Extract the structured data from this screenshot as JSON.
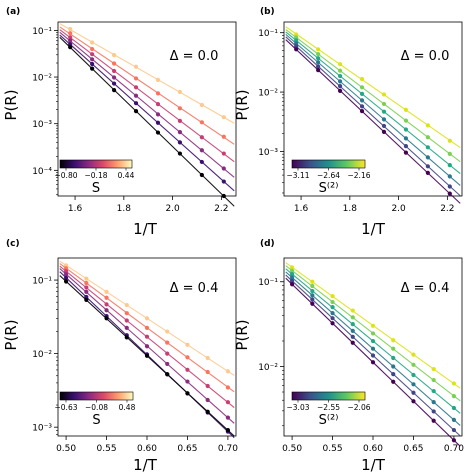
{
  "chart_data": [
    {
      "type": "scatter",
      "panel_label": "(a)",
      "xlabel": "1/T",
      "ylabel": "P(R)",
      "annotation": "Δ = 0.0",
      "scale_y": "log",
      "xlim": [
        1.53,
        2.26
      ],
      "ylim_log10": [
        -4.55,
        -0.82
      ],
      "x_ticks": [
        1.6,
        1.8,
        2.0,
        2.2
      ],
      "x_tick_labels": [
        "1.6",
        "1.8",
        "2.0",
        "2.2"
      ],
      "y_ticks_log10": [
        -1,
        -2,
        -3,
        -4
      ],
      "y_tick_labels": [
        "10⁻¹",
        "10⁻²",
        "10⁻³",
        "10⁻⁴"
      ],
      "x": [
        1.58,
        1.67,
        1.76,
        1.85,
        1.94,
        2.03,
        2.12,
        2.21
      ],
      "colorbar": {
        "label": "S",
        "colormap": "magma",
        "ticks": [
          "−0.80",
          "−0.18",
          "0.44"
        ]
      },
      "series": [
        {
          "color": "#fec98d",
          "log10_values": [
            -0.97,
            -1.26,
            -1.53,
            -1.78,
            -2.06,
            -2.32,
            -2.6,
            -2.86
          ]
        },
        {
          "color": "#f9735d",
          "log10_values": [
            -1.06,
            -1.4,
            -1.71,
            -2.03,
            -2.35,
            -2.67,
            -2.97,
            -3.28
          ]
        },
        {
          "color": "#c83e73",
          "log10_values": [
            -1.15,
            -1.51,
            -1.87,
            -2.22,
            -2.58,
            -2.94,
            -3.29,
            -3.64
          ]
        },
        {
          "color": "#8a2c7e",
          "log10_values": [
            -1.22,
            -1.62,
            -2.01,
            -2.4,
            -2.8,
            -3.18,
            -3.57,
            -3.96
          ]
        },
        {
          "color": "#3b0f70",
          "log10_values": [
            -1.3,
            -1.72,
            -2.14,
            -2.56,
            -2.98,
            -3.4,
            -3.82,
            -4.24
          ]
        },
        {
          "color": "#000004",
          "log10_values": [
            -1.36,
            -1.82,
            -2.28,
            -2.73,
            -3.19,
            -3.64,
            -4.1,
            -4.55
          ]
        }
      ]
    },
    {
      "type": "scatter",
      "panel_label": "(b)",
      "xlabel": "1/T",
      "ylabel": "P(R)",
      "annotation": "Δ = 0.0",
      "scale_y": "log",
      "xlim": [
        1.53,
        2.26
      ],
      "ylim_log10": [
        -3.75,
        -0.82
      ],
      "x_ticks": [
        1.6,
        1.8,
        2.0,
        2.2
      ],
      "x_tick_labels": [
        "1.6",
        "1.8",
        "2.0",
        "2.2"
      ],
      "y_ticks_log10": [
        -1,
        -2,
        -3
      ],
      "y_tick_labels": [
        "10⁻¹",
        "10⁻²",
        "10⁻³"
      ],
      "x": [
        1.58,
        1.67,
        1.76,
        1.85,
        1.94,
        2.03,
        2.12,
        2.21
      ],
      "colorbar": {
        "label": "S⁽²⁾",
        "colormap": "viridis",
        "ticks": [
          "−3.11",
          "−2.64",
          "−2.16"
        ]
      },
      "series": [
        {
          "color": "#dde318",
          "log10_values": [
            -1.03,
            -1.28,
            -1.53,
            -1.78,
            -2.04,
            -2.3,
            -2.56,
            -2.82
          ]
        },
        {
          "color": "#7ad151",
          "log10_values": [
            -1.08,
            -1.36,
            -1.64,
            -1.92,
            -2.2,
            -2.48,
            -2.76,
            -3.04
          ]
        },
        {
          "color": "#22a884",
          "log10_values": [
            -1.13,
            -1.43,
            -1.73,
            -2.03,
            -2.33,
            -2.63,
            -2.93,
            -3.23
          ]
        },
        {
          "color": "#2a788e",
          "log10_values": [
            -1.18,
            -1.5,
            -1.82,
            -2.14,
            -2.46,
            -2.78,
            -3.1,
            -3.42
          ]
        },
        {
          "color": "#414487",
          "log10_values": [
            -1.23,
            -1.57,
            -1.9,
            -2.24,
            -2.57,
            -2.91,
            -3.25,
            -3.59
          ]
        },
        {
          "color": "#440154",
          "log10_values": [
            -1.28,
            -1.63,
            -1.98,
            -2.32,
            -2.67,
            -3.02,
            -3.36,
            -3.71
          ]
        }
      ]
    },
    {
      "type": "scatter",
      "panel_label": "(c)",
      "xlabel": "1/T",
      "ylabel": "P(R)",
      "annotation": "Δ = 0.4",
      "scale_y": "log",
      "xlim": [
        0.49,
        0.71
      ],
      "ylim_log10": [
        -3.12,
        -0.7
      ],
      "x_ticks": [
        0.5,
        0.55,
        0.6,
        0.65,
        0.7
      ],
      "x_tick_labels": [
        "0.50",
        "0.55",
        "0.60",
        "0.65",
        "0.70"
      ],
      "y_ticks_log10": [
        -1,
        -2,
        -3
      ],
      "y_tick_labels": [
        "10⁻¹",
        "10⁻²",
        "10⁻³"
      ],
      "x": [
        0.5,
        0.525,
        0.55,
        0.575,
        0.6,
        0.625,
        0.65,
        0.675,
        0.7
      ],
      "colorbar": {
        "label": "S",
        "colormap": "magma",
        "ticks": [
          "−0.63",
          "−0.08",
          "0.48"
        ]
      },
      "series": [
        {
          "color": "#fec98d",
          "log10_values": [
            -0.8,
            -0.98,
            -1.16,
            -1.34,
            -1.52,
            -1.7,
            -1.88,
            -2.06,
            -2.24
          ]
        },
        {
          "color": "#f9735d",
          "log10_values": [
            -0.84,
            -1.04,
            -1.24,
            -1.45,
            -1.65,
            -1.85,
            -2.05,
            -2.25,
            -2.46
          ]
        },
        {
          "color": "#c83e73",
          "log10_values": [
            -0.88,
            -1.1,
            -1.33,
            -1.55,
            -1.77,
            -2.0,
            -2.22,
            -2.44,
            -2.66
          ]
        },
        {
          "color": "#8a2c7e",
          "log10_values": [
            -0.92,
            -1.16,
            -1.41,
            -1.65,
            -1.9,
            -2.14,
            -2.38,
            -2.63,
            -2.87
          ]
        },
        {
          "color": "#3b0f70",
          "log10_values": [
            -0.97,
            -1.23,
            -1.49,
            -1.75,
            -2.01,
            -2.28,
            -2.54,
            -2.8,
            -3.06
          ]
        },
        {
          "color": "#000004",
          "log10_values": [
            -1.02,
            -1.27,
            -1.52,
            -1.78,
            -2.03,
            -2.28,
            -2.54,
            -2.79,
            -3.04
          ]
        }
      ]
    },
    {
      "type": "scatter",
      "panel_label": "(d)",
      "xlabel": "1/T",
      "ylabel": "P(R)",
      "annotation": "Δ = 0.4",
      "scale_y": "log",
      "xlim": [
        0.49,
        0.71
      ],
      "ylim_log10": [
        -2.82,
        -0.72
      ],
      "x_ticks": [
        0.5,
        0.55,
        0.6,
        0.65,
        0.7
      ],
      "x_tick_labels": [
        "0.50",
        "0.55",
        "0.60",
        "0.65",
        "0.70"
      ],
      "y_ticks_log10": [
        -1,
        -2
      ],
      "y_tick_labels": [
        "10⁻¹",
        "10⁻²"
      ],
      "x": [
        0.5,
        0.525,
        0.55,
        0.575,
        0.6,
        0.625,
        0.65,
        0.675,
        0.7
      ],
      "colorbar": {
        "label": "S⁽²⁾",
        "colormap": "viridis",
        "ticks": [
          "−3.03",
          "−2.55",
          "−2.06"
        ]
      },
      "series": [
        {
          "color": "#dde318",
          "log10_values": [
            -0.83,
            -1.0,
            -1.17,
            -1.34,
            -1.52,
            -1.69,
            -1.86,
            -2.03,
            -2.2
          ]
        },
        {
          "color": "#7ad151",
          "log10_values": [
            -0.87,
            -1.05,
            -1.24,
            -1.42,
            -1.61,
            -1.79,
            -1.98,
            -2.16,
            -2.35
          ]
        },
        {
          "color": "#22a884",
          "log10_values": [
            -0.91,
            -1.11,
            -1.3,
            -1.5,
            -1.7,
            -1.9,
            -2.1,
            -2.29,
            -2.49
          ]
        },
        {
          "color": "#2a788e",
          "log10_values": [
            -0.95,
            -1.16,
            -1.37,
            -1.58,
            -1.79,
            -2.0,
            -2.21,
            -2.42,
            -2.63
          ]
        },
        {
          "color": "#414487",
          "log10_values": [
            -0.99,
            -1.21,
            -1.43,
            -1.65,
            -1.87,
            -2.09,
            -2.31,
            -2.53,
            -2.75
          ]
        },
        {
          "color": "#440154",
          "log10_values": [
            -1.03,
            -1.26,
            -1.49,
            -1.72,
            -1.95,
            -2.18,
            -2.41,
            -2.64,
            -2.87
          ]
        }
      ]
    }
  ]
}
